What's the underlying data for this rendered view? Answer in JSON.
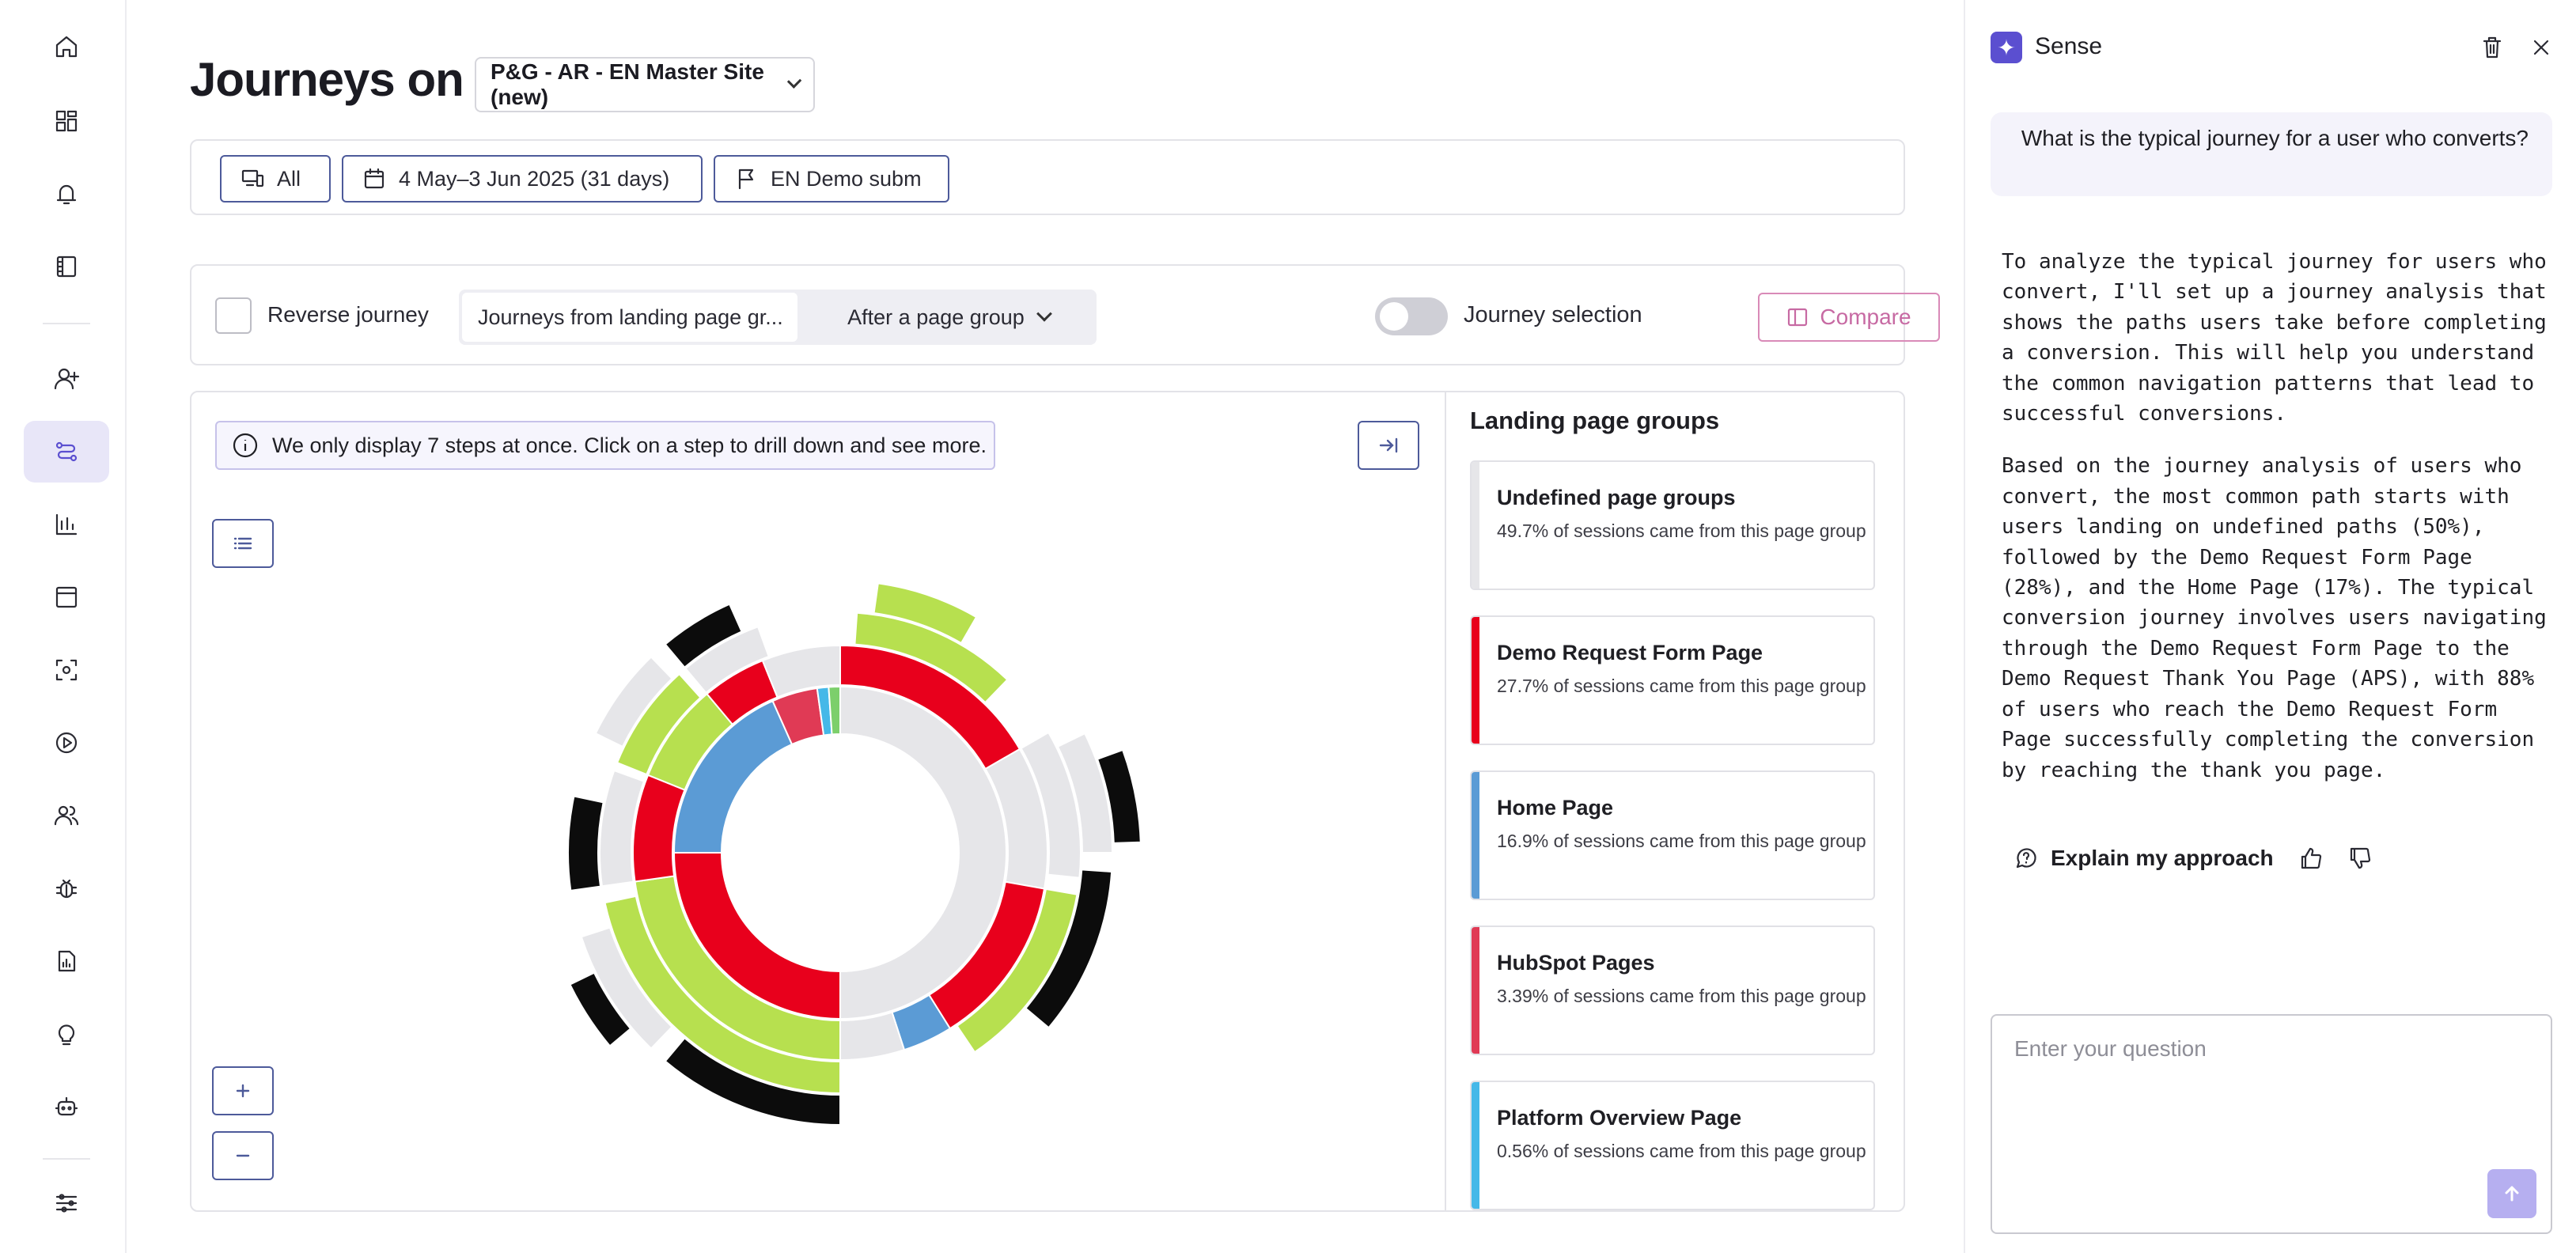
{
  "page": {
    "title": "Journeys on",
    "site_select": "P&G - AR - EN Master Site (new)"
  },
  "nav": {
    "icons": [
      "home-icon",
      "dashboard-icon",
      "bell-icon",
      "notebook-icon",
      "user-plus-icon",
      "journey-icon",
      "bar-chart-icon",
      "window-icon",
      "focus-icon",
      "play-icon",
      "users-icon",
      "bug-icon",
      "report-icon",
      "lightbulb-icon",
      "robot-icon",
      "settings-sliders-icon"
    ],
    "active": "journey-icon"
  },
  "filters": {
    "device": "All",
    "date_range": "4 May–3 Jun 2025 (31 days)",
    "goal": "EN Demo subm"
  },
  "options": {
    "reverse_label": "Reverse journey",
    "mode_label": "Journeys from landing page gr...",
    "after_label": "After a page group",
    "toggle_label": "Journey selection",
    "compare_label": "Compare"
  },
  "panel": {
    "info_text": "We only display 7 steps at once. Click on a step to drill down and see more."
  },
  "landing_groups": {
    "title": "Landing page groups",
    "items": [
      {
        "name": "Undefined page groups",
        "desc": "49.7% of sessions came from this page group",
        "color": "#e6e6e9"
      },
      {
        "name": "Demo Request Form Page",
        "desc": "27.7% of sessions came from this page group",
        "color": "#e8001c"
      },
      {
        "name": "Home Page",
        "desc": "16.9% of sessions came from this page group",
        "color": "#5b9bd5"
      },
      {
        "name": "HubSpot Pages",
        "desc": "3.39% of sessions came from this page group",
        "color": "#e03a55"
      },
      {
        "name": "Platform Overview Page",
        "desc": "0.56% of sessions came from this page group",
        "color": "#45b8e8"
      }
    ]
  },
  "sense": {
    "title": "Sense",
    "question": "What is the typical journey for a user who converts?",
    "answer_p1": "To analyze the typical journey for users who convert, I'll set up a journey analysis that shows the paths users take before completing a conversion. This will help you understand the common navigation patterns that lead to successful conversions.",
    "answer_p2": "Based on the journey analysis of users who convert, the most common path starts with users landing on undefined paths (50%), followed by the Demo Request Form Page (28%), and the Home Page (17%). The typical conversion journey involves users navigating through the Demo Request Form Page to the Demo Request Thank You Page (APS), with 88% of users who reach the Demo Request Form Page successfully completing the conversion by reaching the thank you page.",
    "explain_label": "Explain my approach",
    "input_placeholder": "Enter your question"
  }
}
